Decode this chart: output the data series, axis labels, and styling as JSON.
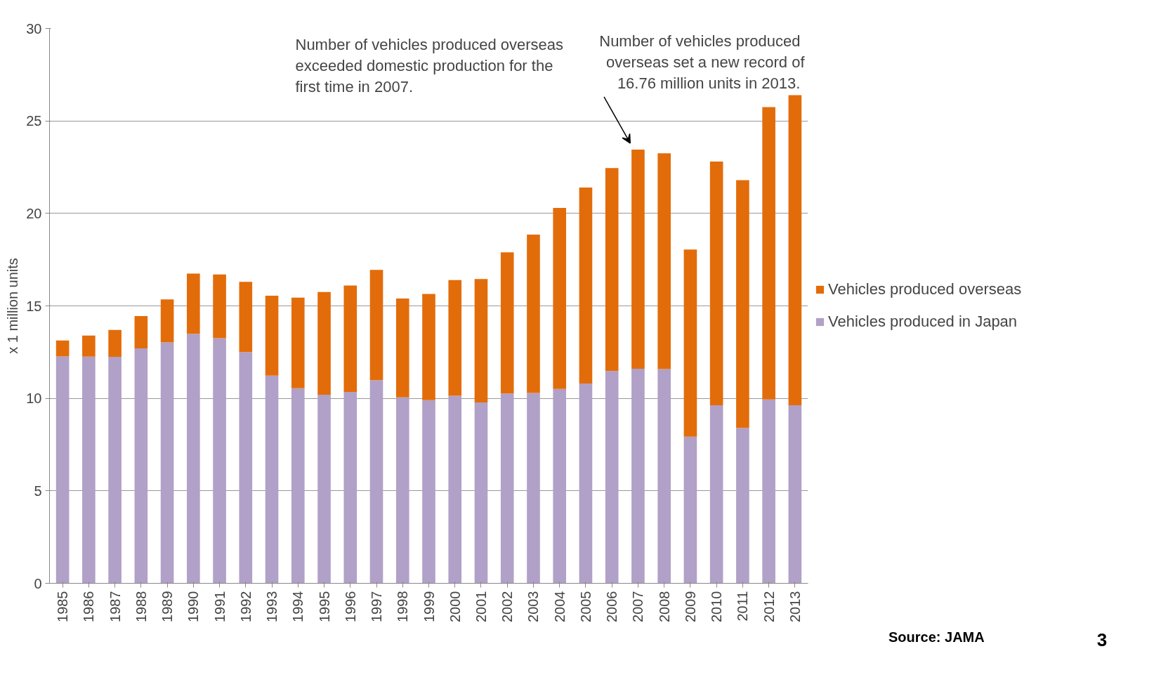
{
  "chart_data": {
    "type": "bar",
    "stacked": true,
    "ylabel": "x 1 million units",
    "categories": [
      "1985",
      "1986",
      "1987",
      "1988",
      "1989",
      "1990",
      "1991",
      "1992",
      "1993",
      "1994",
      "1995",
      "1996",
      "1997",
      "1998",
      "1999",
      "2000",
      "2001",
      "2002",
      "2003",
      "2004",
      "2005",
      "2006",
      "2007",
      "2008",
      "2009",
      "2010",
      "2011",
      "2012",
      "2013"
    ],
    "series": [
      {
        "name": "Vehicles produced in Japan",
        "color": "#b1a0c7",
        "values": [
          12.27,
          12.26,
          12.25,
          12.7,
          13.03,
          13.49,
          13.25,
          12.5,
          11.23,
          10.55,
          10.2,
          10.35,
          10.98,
          10.05,
          9.9,
          10.14,
          9.78,
          10.26,
          10.29,
          10.51,
          10.8,
          11.48,
          11.6,
          11.58,
          7.93,
          9.63,
          8.4,
          9.94,
          9.63
        ]
      },
      {
        "name": "Vehicles produced overseas",
        "color": "#e36c0a",
        "values": [
          0.86,
          1.14,
          1.45,
          1.75,
          2.32,
          3.26,
          3.45,
          3.8,
          4.32,
          4.9,
          5.55,
          5.75,
          5.97,
          5.35,
          5.75,
          6.26,
          6.67,
          7.64,
          8.56,
          9.79,
          10.6,
          10.97,
          11.85,
          11.67,
          10.12,
          13.17,
          13.4,
          15.81,
          16.76
        ]
      }
    ],
    "ylim": [
      0,
      30
    ],
    "yticks": [
      0,
      5,
      10,
      15,
      20,
      25,
      30
    ],
    "grid": "y",
    "legend": "right",
    "annotations": [
      "Number  of vehicles produced overseas\nexceeded domestic production for the\nfirst time in 2007.",
      "Number  of vehicles produced\noverseas set a new record of\n16.76 million units in  2013.",
      "Source: JAMA",
      "3"
    ]
  }
}
